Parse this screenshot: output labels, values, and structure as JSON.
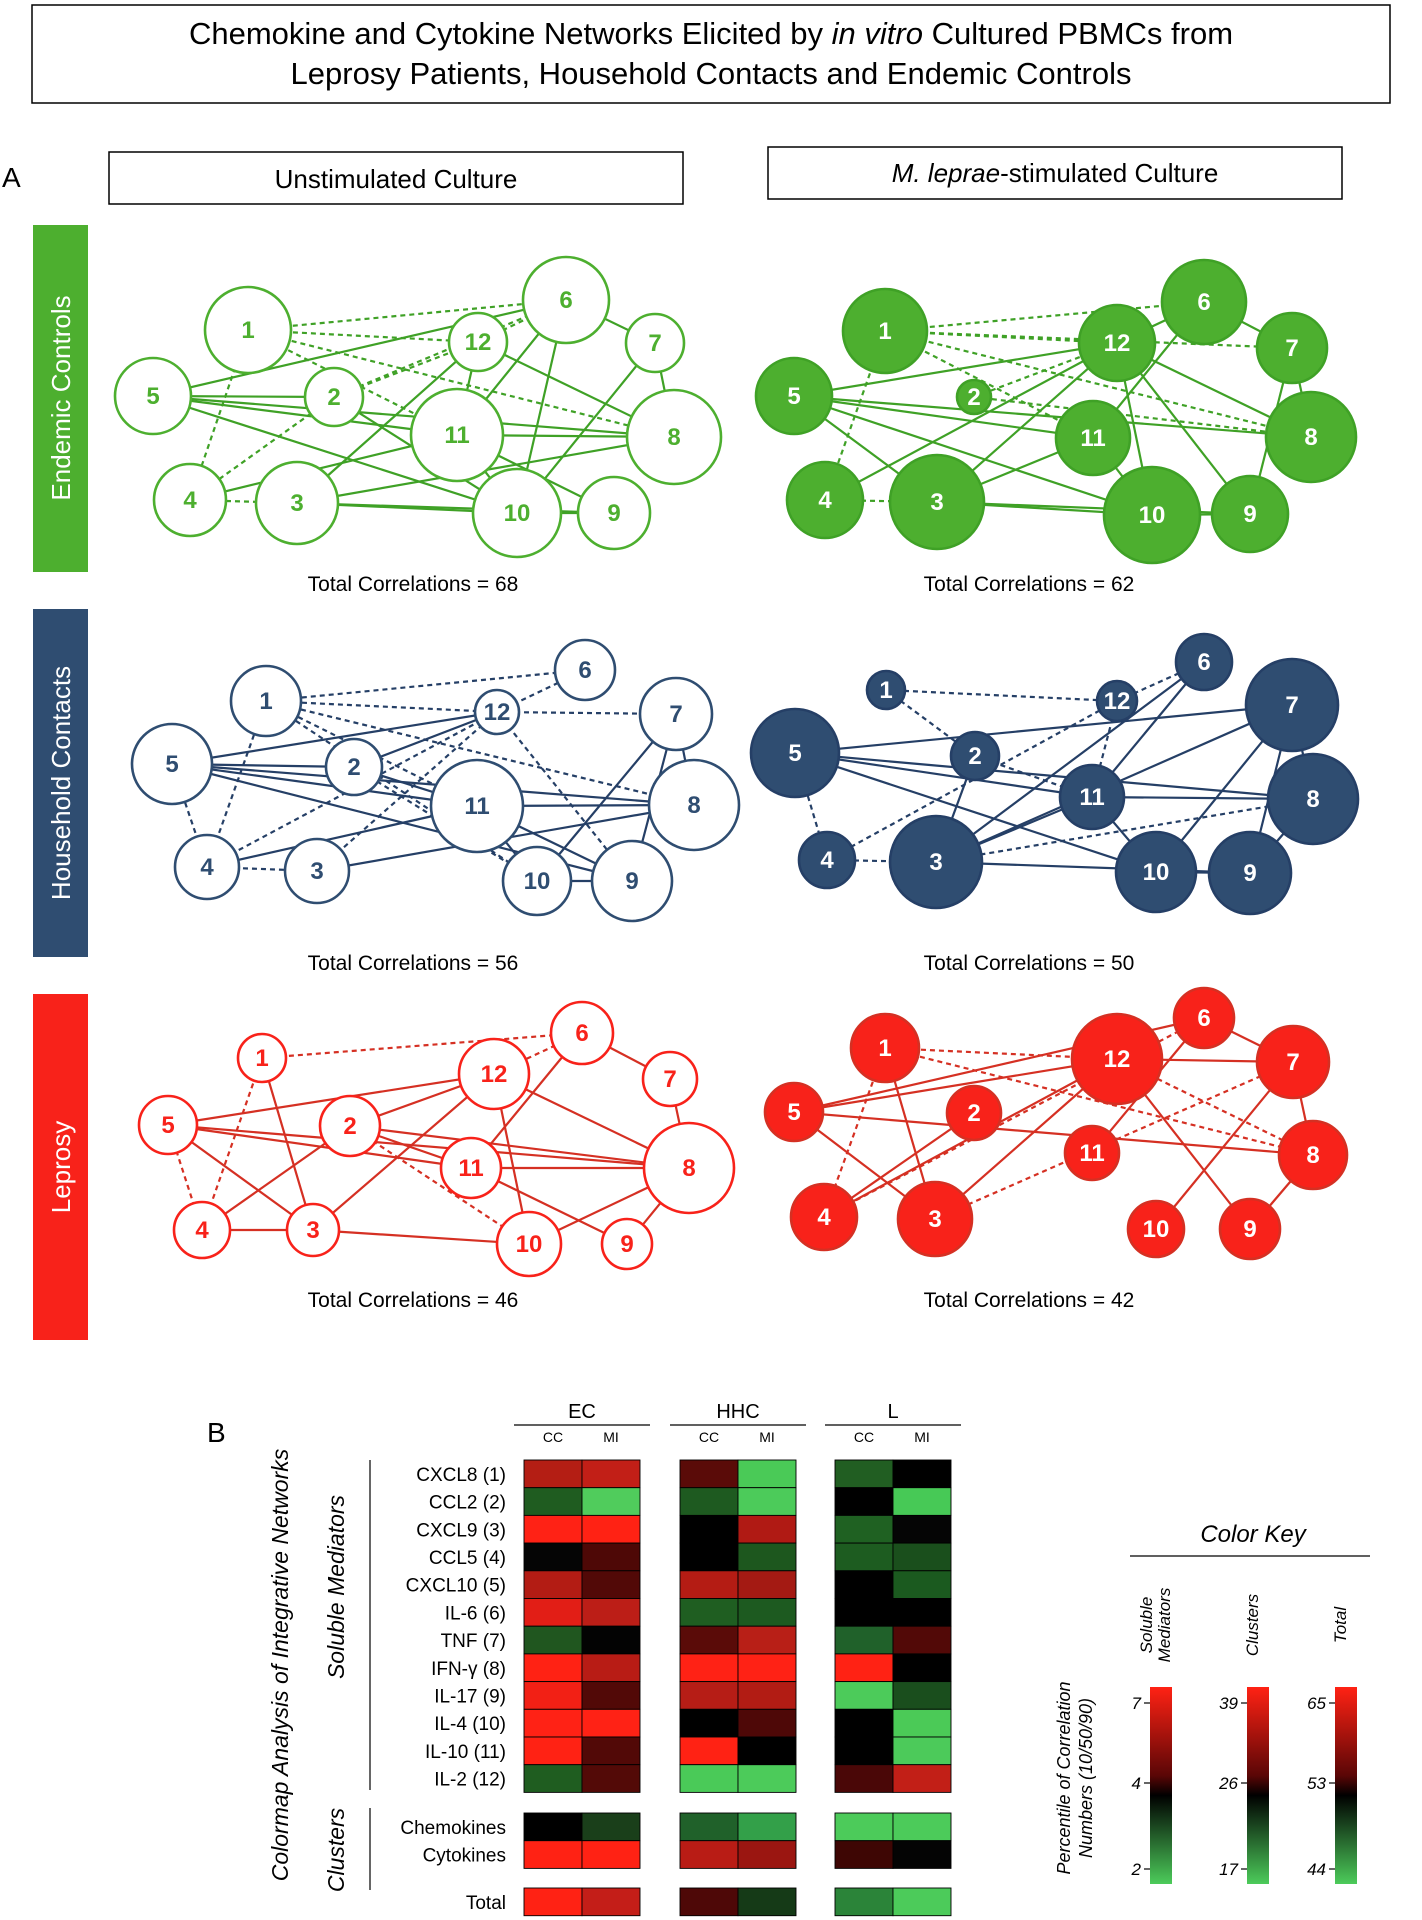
{
  "title": {
    "line1_pre": "Chemokine and Cytokine Networks Elicited by ",
    "line1_em": "in vitro",
    "line1_post": " Cultured PBMCs from",
    "line2": "Leprosy Patients, Household Contacts and Endemic Controls"
  },
  "panel_a": {
    "label": "A",
    "col_unstim": "Unstimulated Culture",
    "col_stim_em": "M. leprae",
    "col_stim_post": "-stimulated Culture",
    "rows": [
      {
        "key": "ec",
        "label": "Endemic Controls",
        "color": "#4DAF2F",
        "dark": "#3FA126",
        "text_unstim": "Total Correlations = 68",
        "text_stim": "Total Correlations = 62"
      },
      {
        "key": "hhc",
        "label": "Household Contacts",
        "color": "#2F4D71",
        "dark": "#253F66",
        "text_unstim": "Total Correlations = 56",
        "text_stim": "Total Correlations = 50"
      },
      {
        "key": "l",
        "label": "Leprosy",
        "color": "#F8221A",
        "dark": "#D53023",
        "text_unstim": "Total Correlations = 46",
        "text_stim": "Total Correlations = 42"
      }
    ],
    "node_labels": [
      "1",
      "2",
      "3",
      "4",
      "5",
      "6",
      "7",
      "8",
      "9",
      "10",
      "11",
      "12"
    ]
  },
  "panel_b": {
    "label": "B",
    "ylabel": "Colormap Analysis of Integrative Networks",
    "section_mediators": "Soluble Mediators",
    "section_clusters": "Clusters",
    "groups": [
      "EC",
      "HHC",
      "L"
    ],
    "subcols": [
      "CC",
      "MI"
    ],
    "mediators": [
      "CXCL8 (1)",
      "CCL2 (2)",
      "CXCL9 (3)",
      "CCL5 (4)",
      "CXCL10 (5)",
      "IL-6 (6)",
      "TNF (7)",
      "IFN-γ (8)",
      "IL-17 (9)",
      "IL-4 (10)",
      "IL-10 (11)",
      "IL-2 (12)"
    ],
    "clusters": [
      "Chemokines",
      "Cytokines"
    ],
    "total": "Total",
    "cells_mediators": [
      [
        "#B41E14",
        "#C21F17",
        "#5A0B08",
        "#4ACA57",
        "#215E22",
        "#000000"
      ],
      [
        "#1F5C20",
        "#50CC5C",
        "#1E5A20",
        "#4CCB5A",
        "#000000",
        "#47C956"
      ],
      [
        "#FF2215",
        "#FF2214",
        "#000000",
        "#B01A14",
        "#1F6122",
        "#050505"
      ],
      [
        "#050505",
        "#4E0806",
        "#000000",
        "#1D571E",
        "#1D5C20",
        "#1A4F1C"
      ],
      [
        "#B31C14",
        "#520907",
        "#B41C14",
        "#A41A13",
        "#000000",
        "#1B5A1F"
      ],
      [
        "#E21E16",
        "#BC1E17",
        "#1F5E21",
        "#1D5A20",
        "#000000",
        "#000000"
      ],
      [
        "#20561F",
        "#030303",
        "#5A0B08",
        "#B81F17",
        "#20612A",
        "#520907"
      ],
      [
        "#FF2214",
        "#B81C15",
        "#FF2215",
        "#FF2215",
        "#FF2214",
        "#000000"
      ],
      [
        "#F22015",
        "#520907",
        "#B61D16",
        "#B21C14",
        "#4CCB5A",
        "#1A4E1D"
      ],
      [
        "#FF2215",
        "#FF2215",
        "#000000",
        "#4E0807",
        "#000000",
        "#4BCA57"
      ],
      [
        "#FF2214",
        "#520907",
        "#FF2214",
        "#000000",
        "#000000",
        "#4CCA5A"
      ],
      [
        "#1F5D20",
        "#530A07",
        "#4ACA58",
        "#4CCB5A",
        "#4A0707",
        "#C21F17"
      ]
    ],
    "cells_clusters": [
      [
        "#000000",
        "#1A3F1A",
        "#20612A",
        "#33A049",
        "#4CCB5A",
        "#4CCB5A"
      ],
      [
        "#FF2214",
        "#FF2214",
        "#B91C15",
        "#9B1611",
        "#3E0604",
        "#040404"
      ]
    ],
    "cells_total": [
      "#FF2214",
      "#C41E18",
      "#4E0807",
      "#153A17",
      "#2B8439",
      "#4CCB5A"
    ],
    "color_key": {
      "title": "Color Key",
      "axis_label_1": "Percentile of Correlation",
      "axis_label_2": "Numbers (10/50/90)",
      "bars": [
        {
          "label_1": "Soluble",
          "label_2": "Mediators",
          "ticks": [
            "7",
            "4",
            "2"
          ]
        },
        {
          "label_1": "Clusters",
          "label_2": "",
          "ticks": [
            "39",
            "26",
            "17"
          ]
        },
        {
          "label_1": "Total",
          "label_2": "",
          "ticks": [
            "65",
            "53",
            "44"
          ]
        }
      ]
    }
  }
}
